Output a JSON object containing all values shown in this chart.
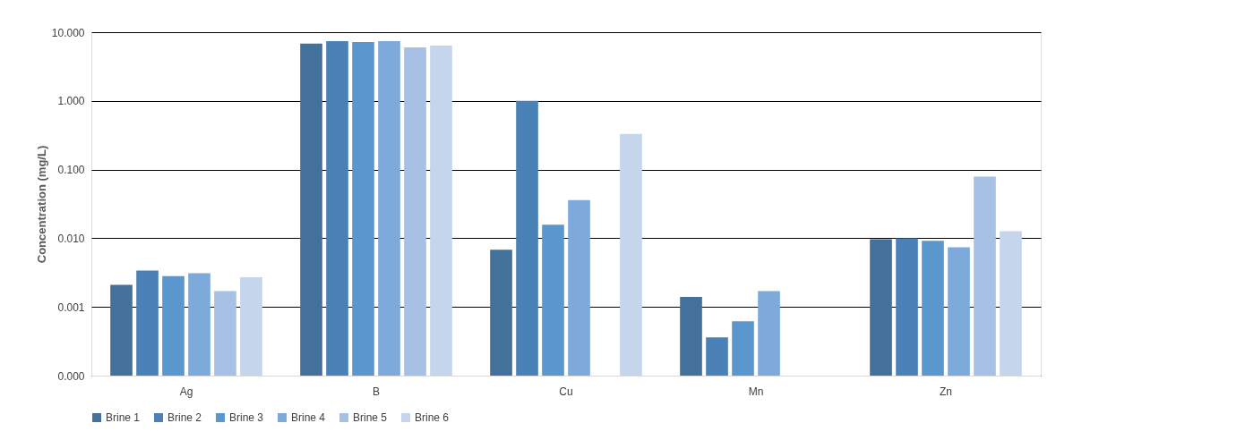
{
  "chart_data": {
    "type": "bar",
    "ylabel": "Concentration (mg/L)",
    "log": "y",
    "grid": "y",
    "legend": "bottom",
    "categories": [
      "Ag",
      "B",
      "Cu",
      "Mn",
      "Zn"
    ],
    "ylim": [
      0.0001,
      10
    ],
    "yticks": [
      {
        "value": 0.0001,
        "label": "0.000"
      },
      {
        "value": 0.001,
        "label": "0.001"
      },
      {
        "value": 0.01,
        "label": "0.010"
      },
      {
        "value": 0.1,
        "label": "0.100"
      },
      {
        "value": 1,
        "label": "1.000"
      },
      {
        "value": 10,
        "label": "10.000"
      }
    ],
    "series": [
      {
        "name": "Brine 1",
        "color": "#44719c",
        "values": [
          0.0021,
          6.8,
          0.0068,
          0.0014,
          0.0097
        ]
      },
      {
        "name": "Brine 2",
        "color": "#4a82b8",
        "values": [
          0.0034,
          7.4,
          1.0,
          0.00036,
          0.01
        ]
      },
      {
        "name": "Brine 3",
        "color": "#5b97cf",
        "values": [
          0.0028,
          7.2,
          0.0157,
          0.00062,
          0.0092
        ]
      },
      {
        "name": "Brine 4",
        "color": "#7eaadb",
        "values": [
          0.0031,
          7.4,
          0.036,
          0.0017,
          0.0074
        ]
      },
      {
        "name": "Brine 5",
        "color": "#a6c1e3",
        "values": [
          0.0017,
          6.0,
          null,
          null,
          0.079
        ]
      },
      {
        "name": "Brine 6",
        "color": "#c5d5ec",
        "values": [
          0.0027,
          6.4,
          0.33,
          null,
          0.0127
        ]
      }
    ]
  }
}
